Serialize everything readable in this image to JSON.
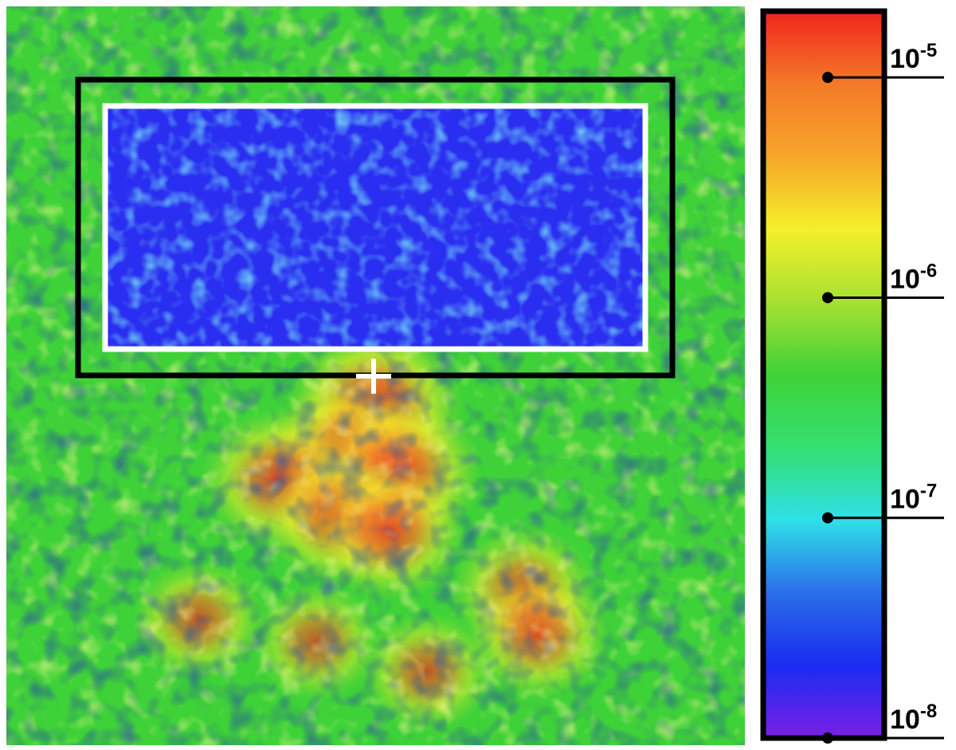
{
  "chart_data": {
    "type": "heatmap",
    "title": "",
    "xlabel": "",
    "ylabel": "",
    "colorbar": {
      "scale": "log",
      "range": [
        1e-08,
        2e-05
      ],
      "ticks": [
        {
          "value": 1e-05,
          "base": "10",
          "exponent": "-5"
        },
        {
          "value": 1e-06,
          "base": "10",
          "exponent": "-6"
        },
        {
          "value": 1e-07,
          "base": "10",
          "exponent": "-7"
        },
        {
          "value": 1e-08,
          "base": "10",
          "exponent": "-8"
        }
      ],
      "colormap": [
        "#7a1fe6",
        "#1a2cf0",
        "#2a6ee8",
        "#2fe0e8",
        "#33e070",
        "#3fd238",
        "#a8e033",
        "#f4f02a",
        "#f7a52a",
        "#f47a28",
        "#f0241e"
      ]
    },
    "markers": {
      "outer_box_color": "#000000",
      "inner_box_color": "#ffffff",
      "cross_color": "#ffffff"
    },
    "hotspots": [
      {
        "u": 0.5,
        "v": 0.54,
        "strength": 1.0
      },
      {
        "u": 0.46,
        "v": 0.61,
        "strength": 0.95
      },
      {
        "u": 0.53,
        "v": 0.63,
        "strength": 0.9
      },
      {
        "u": 0.37,
        "v": 0.64,
        "strength": 0.75
      },
      {
        "u": 0.45,
        "v": 0.69,
        "strength": 0.7
      },
      {
        "u": 0.52,
        "v": 0.71,
        "strength": 0.7
      },
      {
        "u": 0.7,
        "v": 0.79,
        "strength": 0.6
      },
      {
        "u": 0.72,
        "v": 0.85,
        "strength": 0.6
      },
      {
        "u": 0.26,
        "v": 0.83,
        "strength": 0.45
      },
      {
        "u": 0.42,
        "v": 0.86,
        "strength": 0.4
      },
      {
        "u": 0.57,
        "v": 0.9,
        "strength": 0.45
      }
    ]
  }
}
